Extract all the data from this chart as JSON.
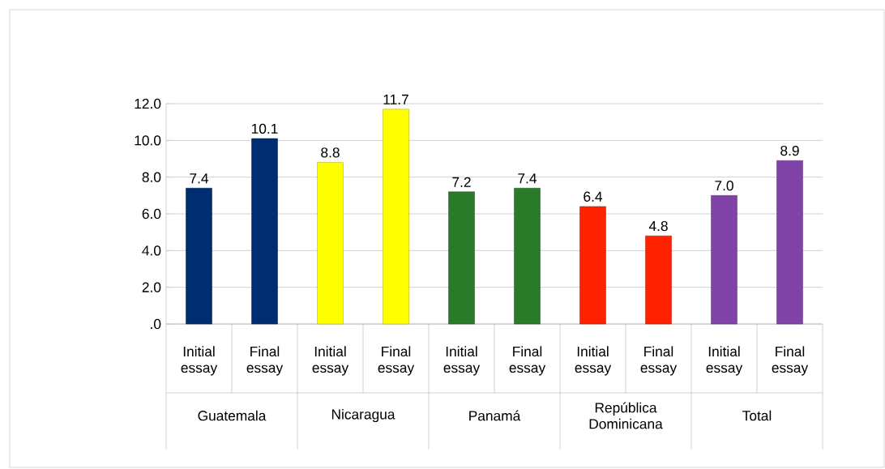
{
  "chart_data": {
    "type": "bar",
    "categories": [
      "Initial essay",
      "Final essay",
      "Initial essay",
      "Final essay",
      "Initial essay",
      "Final essay",
      "Initial essay",
      "Final essay",
      "Initial essay",
      "Final essay"
    ],
    "values": [
      7.4,
      10.1,
      8.8,
      11.7,
      7.2,
      7.4,
      6.4,
      4.8,
      7.0,
      8.9
    ],
    "value_labels": [
      "7.4",
      "10.1",
      "8.8",
      "11.7",
      "7.2",
      "7.4",
      "6.4",
      "4.8",
      "7.0",
      "8.9"
    ],
    "colors": [
      "#002d72",
      "#002d72",
      "#ffff00",
      "#ffff00",
      "#2a7a2a",
      "#2a7a2a",
      "#ff2200",
      "#ff2200",
      "#8044a8",
      "#8044a8"
    ],
    "annotations": [
      "Guatemala",
      "Nicaragua",
      "Panamá",
      "República Dominicana",
      "Total"
    ],
    "ylim": [
      0,
      12
    ],
    "yticks": [
      {
        "value": 0,
        "label": ".0"
      },
      {
        "value": 2,
        "label": "2.0"
      },
      {
        "value": 4,
        "label": "4.0"
      },
      {
        "value": 6,
        "label": "6.0"
      },
      {
        "value": 8,
        "label": "8.0"
      },
      {
        "value": 10,
        "label": "10.0"
      },
      {
        "value": 12,
        "label": "12.0"
      }
    ],
    "grid": "y"
  }
}
